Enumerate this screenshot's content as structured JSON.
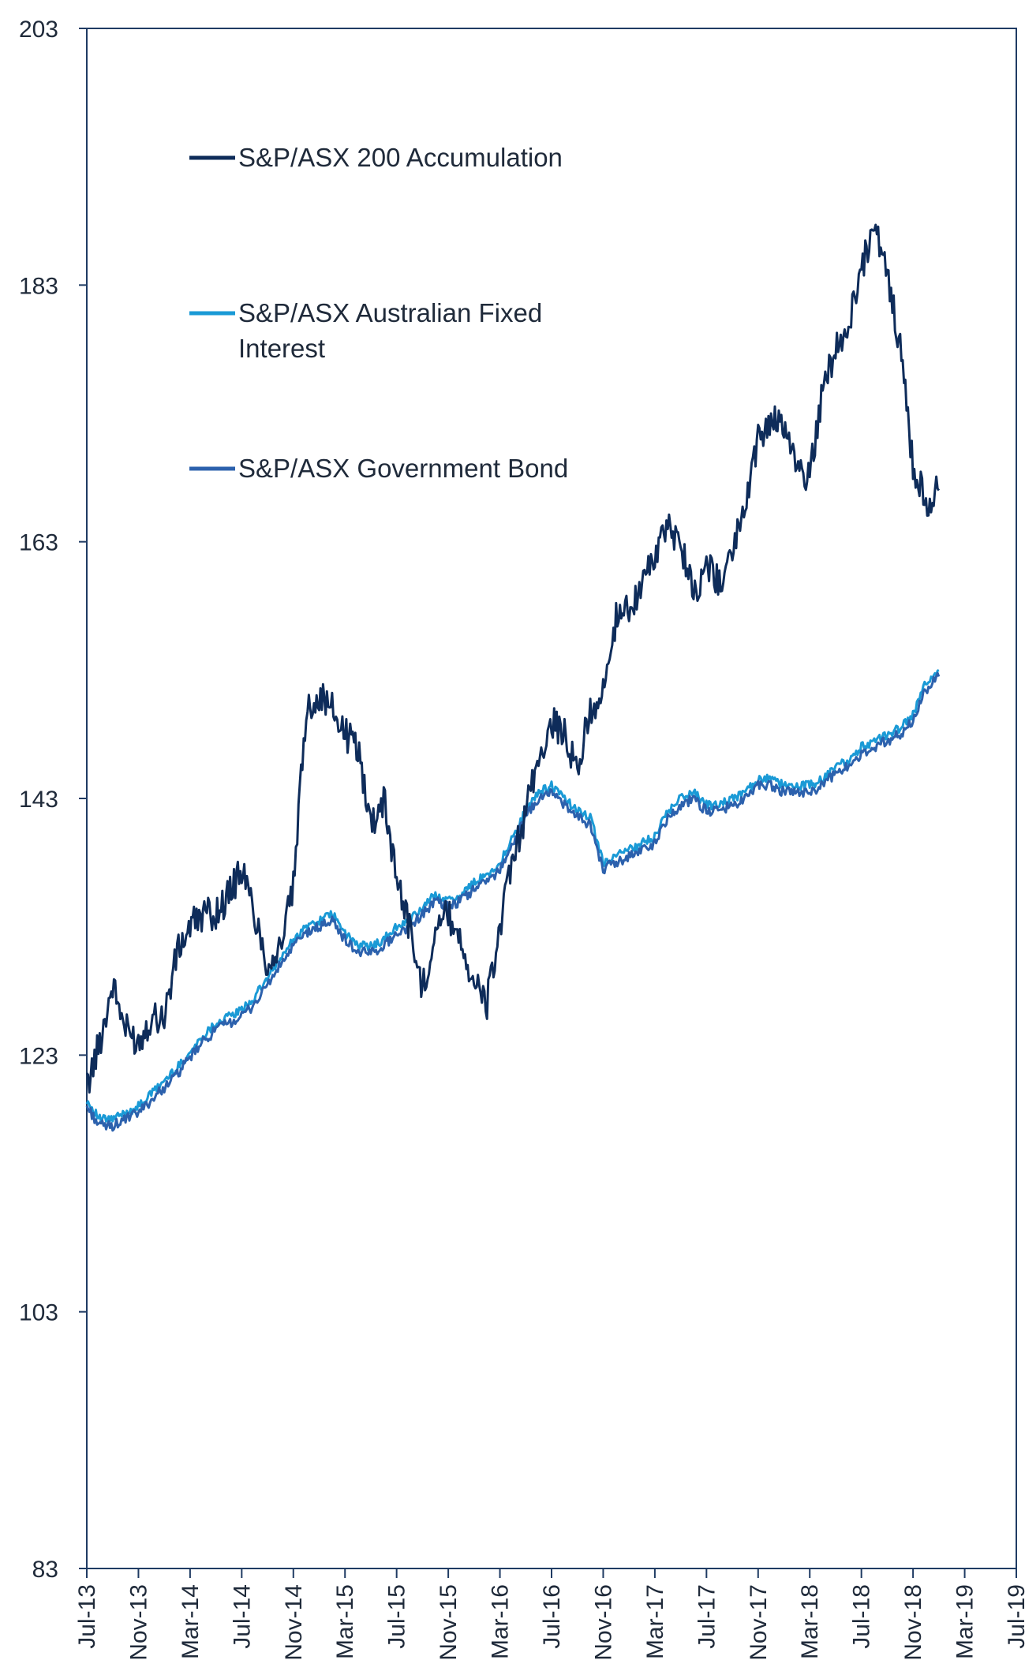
{
  "chart_data": {
    "type": "line",
    "title": "",
    "xlabel": "",
    "ylabel": "",
    "ylim": [
      83,
      203
    ],
    "yticks": [
      83,
      103,
      123,
      143,
      163,
      183,
      203
    ],
    "xticks": [
      "Jul-13",
      "Nov-13",
      "Mar-14",
      "Jul-14",
      "Nov-14",
      "Mar-15",
      "Jul-15",
      "Nov-15",
      "Mar-16",
      "Jul-16",
      "Nov-16",
      "Mar-17",
      "Jul-17",
      "Nov-17",
      "Mar-18",
      "Jul-18",
      "Nov-18",
      "Mar-19",
      "Jul-19"
    ],
    "grid": false,
    "legend_position": "top-left",
    "series": [
      {
        "name": "S&P/ASX 200 Accumulation",
        "color": "#0e2c5a",
        "x": [
          "Jul-13",
          "Aug-13",
          "Sep-13",
          "Oct-13",
          "Nov-13",
          "Dec-13",
          "Jan-14",
          "Feb-14",
          "Mar-14",
          "Apr-14",
          "May-14",
          "Jun-14",
          "Jul-14",
          "Aug-14",
          "Sep-14",
          "Oct-14",
          "Nov-14",
          "Dec-14",
          "Jan-15",
          "Feb-15",
          "Mar-15",
          "Apr-15",
          "May-15",
          "Jun-15",
          "Jul-15",
          "Aug-15",
          "Sep-15",
          "Oct-15",
          "Nov-15",
          "Dec-15",
          "Jan-16",
          "Feb-16",
          "Mar-16",
          "Apr-16",
          "May-16",
          "Jun-16",
          "Jul-16",
          "Aug-16",
          "Sep-16",
          "Oct-16",
          "Nov-16",
          "Dec-16",
          "Jan-17",
          "Feb-17",
          "Mar-17",
          "Apr-17",
          "May-17",
          "Jun-17",
          "Jul-17",
          "Aug-17",
          "Sep-17",
          "Oct-17",
          "Nov-17",
          "Dec-17",
          "Jan-18",
          "Feb-18",
          "Mar-18",
          "Apr-18",
          "May-18",
          "Jun-18",
          "Jul-18",
          "Aug-18",
          "Sep-18",
          "Oct-18",
          "Nov-18",
          "Dec-18",
          "Jan-19"
        ],
        "values": [
          120.5,
          124,
          128.5,
          125,
          124,
          126,
          126,
          131,
          133,
          134,
          134,
          135.5,
          137.5,
          134,
          130,
          131.5,
          136,
          150,
          151,
          150,
          148,
          147,
          141,
          143,
          137,
          133,
          128,
          133,
          134,
          132,
          128.5,
          127,
          133,
          138,
          142,
          146,
          149,
          148,
          145,
          150,
          151,
          157,
          158,
          159.5,
          162,
          164,
          163,
          159,
          161,
          160,
          162,
          166,
          171,
          172.5,
          172,
          169,
          168,
          175,
          178,
          180,
          184,
          188,
          184,
          178,
          169,
          166,
          167
        ]
      },
      {
        "name": "S&P/ASX Australian Fixed Interest",
        "color": "#1a9ad6",
        "x": [
          "Jul-13",
          "Aug-13",
          "Sep-13",
          "Oct-13",
          "Nov-13",
          "Dec-13",
          "Jan-14",
          "Feb-14",
          "Mar-14",
          "Apr-14",
          "May-14",
          "Jun-14",
          "Jul-14",
          "Aug-14",
          "Sep-14",
          "Oct-14",
          "Nov-14",
          "Dec-14",
          "Jan-15",
          "Feb-15",
          "Mar-15",
          "Apr-15",
          "May-15",
          "Jun-15",
          "Jul-15",
          "Aug-15",
          "Sep-15",
          "Oct-15",
          "Nov-15",
          "Dec-15",
          "Jan-16",
          "Feb-16",
          "Mar-16",
          "Apr-16",
          "May-16",
          "Jun-16",
          "Jul-16",
          "Aug-16",
          "Sep-16",
          "Oct-16",
          "Nov-16",
          "Dec-16",
          "Jan-17",
          "Feb-17",
          "Mar-17",
          "Apr-17",
          "May-17",
          "Jun-17",
          "Jul-17",
          "Aug-17",
          "Sep-17",
          "Oct-17",
          "Nov-17",
          "Dec-17",
          "Jan-18",
          "Feb-18",
          "Mar-18",
          "Apr-18",
          "May-18",
          "Jun-18",
          "Jul-18",
          "Aug-18",
          "Sep-18",
          "Oct-18",
          "Nov-18",
          "Dec-18",
          "Jan-19"
        ],
        "values": [
          119.5,
          118,
          118,
          118.5,
          119,
          120,
          121,
          122,
          123.2,
          124.5,
          125.5,
          126,
          126.5,
          127.5,
          129,
          130.5,
          132,
          133,
          133.5,
          134,
          132.5,
          131.5,
          131.5,
          132,
          133,
          133.5,
          134.5,
          135.5,
          135,
          135.5,
          136.5,
          137,
          138,
          140,
          142,
          143.5,
          144,
          143,
          142,
          141.5,
          138,
          138.5,
          139,
          139.5,
          140,
          142,
          143,
          143.5,
          142.5,
          142.5,
          143,
          143.5,
          144.5,
          144.5,
          144,
          144,
          144,
          144.5,
          145.5,
          146,
          147,
          147.5,
          148,
          148.5,
          149.5,
          152,
          153
        ]
      },
      {
        "name": "S&P/ASX Government Bond",
        "color": "#2c61ad",
        "x": [
          "Jul-13",
          "Aug-13",
          "Sep-13",
          "Oct-13",
          "Nov-13",
          "Dec-13",
          "Jan-14",
          "Feb-14",
          "Mar-14",
          "Apr-14",
          "May-14",
          "Jun-14",
          "Jul-14",
          "Aug-14",
          "Sep-14",
          "Oct-14",
          "Nov-14",
          "Dec-14",
          "Jan-15",
          "Feb-15",
          "Mar-15",
          "Apr-15",
          "May-15",
          "Jun-15",
          "Jul-15",
          "Aug-15",
          "Sep-15",
          "Oct-15",
          "Nov-15",
          "Dec-15",
          "Jan-16",
          "Feb-16",
          "Mar-16",
          "Apr-16",
          "May-16",
          "Jun-16",
          "Jul-16",
          "Aug-16",
          "Sep-16",
          "Oct-16",
          "Nov-16",
          "Dec-16",
          "Jan-17",
          "Feb-17",
          "Mar-17",
          "Apr-17",
          "May-17",
          "Jun-17",
          "Jul-17",
          "Aug-17",
          "Sep-17",
          "Oct-17",
          "Nov-17",
          "Dec-17",
          "Jan-18",
          "Feb-18",
          "Mar-18",
          "Apr-18",
          "May-18",
          "Jun-18",
          "Jul-18",
          "Aug-18",
          "Sep-18",
          "Oct-18",
          "Nov-18",
          "Dec-18",
          "Jan-19"
        ],
        "values": [
          119,
          117.5,
          117.5,
          118,
          118.5,
          119.5,
          120.5,
          121.5,
          122.8,
          124,
          125,
          125.5,
          126,
          127,
          128.5,
          130,
          131.5,
          132.5,
          133,
          133.5,
          132,
          131,
          131,
          131.5,
          132.5,
          133,
          134,
          135,
          134.5,
          135,
          136,
          136.5,
          137.5,
          139.5,
          141.5,
          143,
          143.5,
          142.5,
          141.5,
          141,
          137.5,
          138,
          138.5,
          139,
          139.5,
          141.5,
          142.5,
          143,
          142,
          142,
          142.5,
          143,
          144,
          144,
          143.5,
          143.5,
          143.5,
          144,
          145,
          145.5,
          146.5,
          147,
          147.5,
          148,
          149,
          151.5,
          152.5
        ]
      }
    ]
  },
  "legend": {
    "items": [
      {
        "label": "S&P/ASX 200 Accumulation",
        "color": "#0e2c5a"
      },
      {
        "label_line1": "S&P/ASX Australian Fixed",
        "label_line2": "Interest",
        "color": "#1a9ad6"
      },
      {
        "label": "S&P/ASX Government Bond",
        "color": "#2c61ad"
      }
    ]
  }
}
